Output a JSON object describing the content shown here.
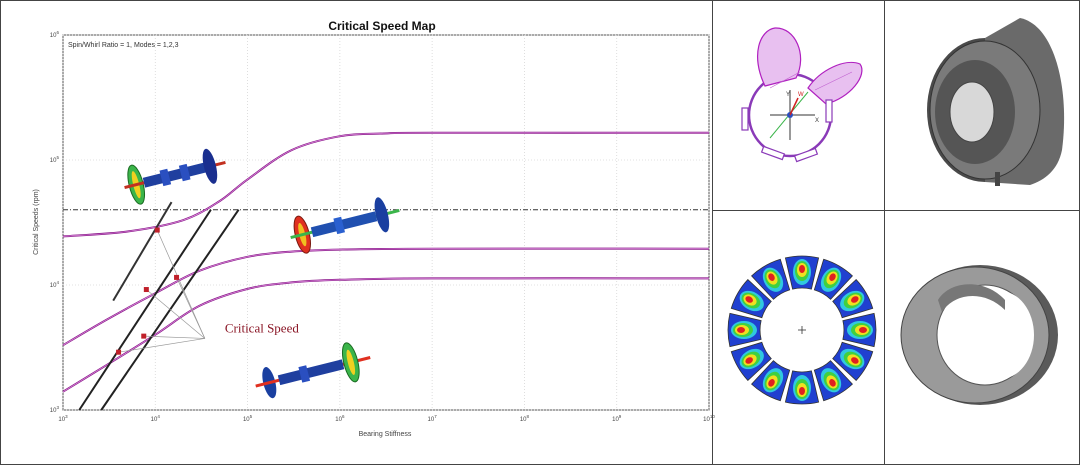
{
  "chart_data": {
    "type": "line",
    "title": "Critical Speed Map",
    "annotation": "Spin/Whirl Ratio = 1, Modes = 1,2,3",
    "xlabel": "Bearing Stiffness",
    "ylabel": "Critical Speeds (rpm)",
    "x_scale": "log",
    "y_scale": "log",
    "xlim": [
      1000,
      10000000000
    ],
    "ylim": [
      1000,
      1000000
    ],
    "x_ticks": [
      {
        "value": 1000,
        "base": "10",
        "exp": "3"
      },
      {
        "value": 10000,
        "base": "10",
        "exp": "4"
      },
      {
        "value": 100000,
        "base": "10",
        "exp": "5"
      },
      {
        "value": 1000000,
        "base": "10",
        "exp": "6"
      },
      {
        "value": 10000000,
        "base": "10",
        "exp": "7"
      },
      {
        "value": 100000000,
        "base": "10",
        "exp": "8"
      },
      {
        "value": 1000000000,
        "base": "10",
        "exp": "9"
      },
      {
        "value": 10000000000,
        "base": "10",
        "exp": "10"
      }
    ],
    "y_ticks": [
      {
        "value": 1000,
        "base": "10",
        "exp": "3"
      },
      {
        "value": 10000,
        "base": "10",
        "exp": "4"
      },
      {
        "value": 100000,
        "base": "10",
        "exp": "5"
      },
      {
        "value": 1000000,
        "base": "10",
        "exp": "6"
      }
    ],
    "grid": true,
    "series": [
      {
        "color": "#8b1a8b",
        "x": [
          1000,
          5000,
          20000,
          50000,
          100000,
          300000,
          1000000,
          3000000,
          10000000,
          10000000000
        ],
        "y": [
          24500,
          26800,
          33000,
          47000,
          70000,
          120000,
          155000,
          163000,
          165000,
          165000
        ]
      },
      {
        "color": "#8b1a8b",
        "x": [
          1000,
          3000,
          10000,
          30000,
          100000,
          300000,
          1000000,
          10000000,
          10000000000
        ],
        "y": [
          3300,
          5300,
          8600,
          13000,
          16800,
          18500,
          19200,
          19500,
          19500
        ]
      },
      {
        "color": "#8b1a8b",
        "x": [
          1000,
          3000,
          10000,
          30000,
          100000,
          300000,
          1000000,
          10000000,
          10000000000
        ],
        "y": [
          1400,
          2300,
          4000,
          6800,
          9300,
          10500,
          11000,
          11300,
          11300
        ]
      }
    ],
    "operating_speed": {
      "y": 40000
    },
    "stiffness_lines": [
      {
        "color": "#333333",
        "x": [
          3500,
          15000
        ],
        "y": [
          7500,
          46000
        ]
      },
      {
        "color": "#222222",
        "x": [
          1500,
          40000
        ],
        "y": [
          1000,
          40000
        ]
      },
      {
        "color": "#222222",
        "x": [
          2600,
          80000
        ],
        "y": [
          1000,
          40000
        ]
      }
    ],
    "critical_points": [
      {
        "x": 4000,
        "y": 2900
      },
      {
        "x": 7500,
        "y": 3900
      },
      {
        "x": 8000,
        "y": 9200
      },
      {
        "x": 17000,
        "y": 11500
      },
      {
        "x": 10500,
        "y": 27500
      }
    ],
    "callout": {
      "text": "Critical Speed",
      "x": 40000,
      "y": 3600
    }
  },
  "colors": {
    "curve": "#8b1a8b",
    "marker": "#c0202a",
    "line": "#222222"
  }
}
